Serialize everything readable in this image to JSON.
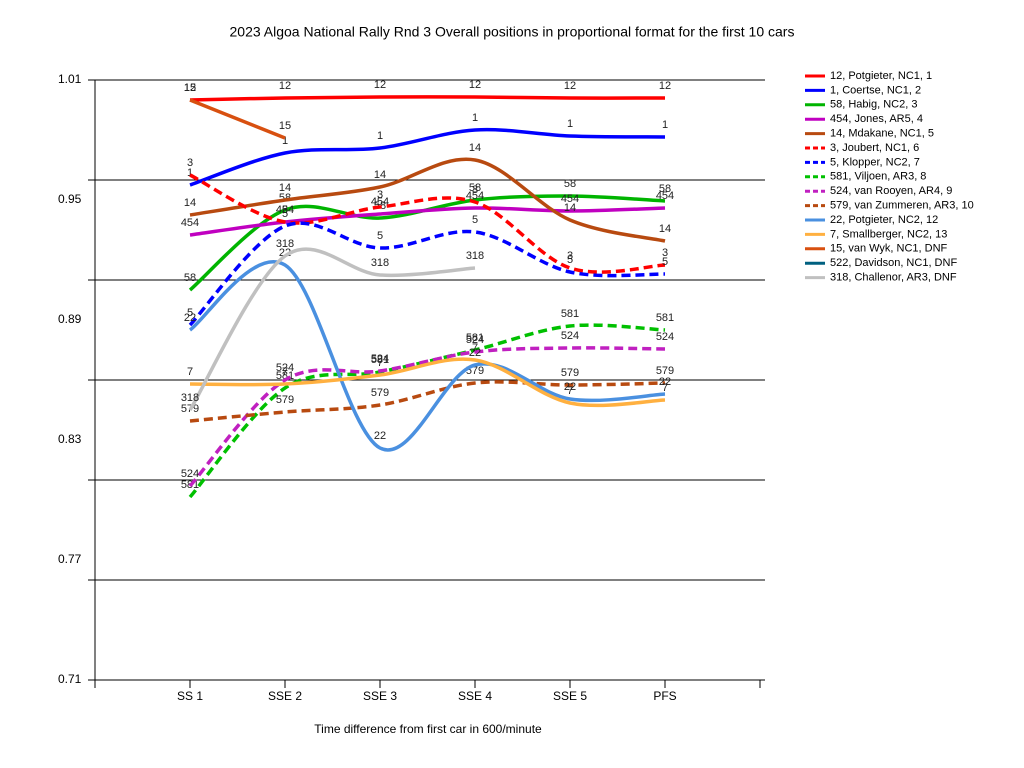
{
  "chart_data": {
    "type": "line",
    "smooth": true,
    "title": "2023 Algoa National Rally Rnd 3  Overall positions in proportional format for the first 10 cars",
    "x_label": "Time difference from first car in 600/minute",
    "categories": [
      "SS 1",
      "SSE 2",
      "SSE 3",
      "SSE 4",
      "SSE 5",
      "PFS"
    ],
    "ylim": [
      0.71,
      1.01
    ],
    "yticks": [
      1.01,
      0.95,
      0.89,
      0.83,
      0.77,
      0.71
    ],
    "ygrid": [
      1.01,
      0.96,
      0.91,
      0.86,
      0.81,
      0.76,
      0.71
    ],
    "legend": "right",
    "series": [
      {
        "name": "12, Potgieter, NC1, 1",
        "point_label": "12",
        "color": "#ff0000",
        "dashed": false,
        "values": [
          1.0,
          1.001,
          1.0015,
          1.0015,
          1.001,
          1.001
        ]
      },
      {
        "name": "1, Coertse, NC1, 2",
        "point_label": "1",
        "color": "#0000ff",
        "dashed": false,
        "values": [
          0.9575,
          0.9735,
          0.976,
          0.985,
          0.982,
          0.9815
        ]
      },
      {
        "name": "58, Habig, NC2, 3",
        "point_label": "58",
        "color": "#00b400",
        "dashed": false,
        "values": [
          0.905,
          0.945,
          0.941,
          0.95,
          0.952,
          0.9495
        ]
      },
      {
        "name": "454, Jones, AR5, 4",
        "point_label": "454",
        "color": "#c000c0",
        "dashed": false,
        "values": [
          0.9325,
          0.939,
          0.943,
          0.946,
          0.9445,
          0.946
        ]
      },
      {
        "name": "14, Mdakane, NC1, 5",
        "point_label": "14",
        "color": "#b84a10",
        "dashed": false,
        "values": [
          0.9425,
          0.95,
          0.9565,
          0.97,
          0.94,
          0.9295
        ]
      },
      {
        "name": "3, Joubert, NC1, 6",
        "point_label": "3",
        "color": "#ff0000",
        "dashed": true,
        "values": [
          0.9625,
          0.939,
          0.9465,
          0.949,
          0.916,
          0.9175
        ]
      },
      {
        "name": "5, Klopper, NC2, 7",
        "point_label": "5",
        "color": "#0000ff",
        "dashed": true,
        "values": [
          0.8875,
          0.937,
          0.926,
          0.934,
          0.914,
          0.913
        ]
      },
      {
        "name": "581, Viljoen, AR3, 8",
        "point_label": "581",
        "color": "#00c000",
        "dashed": true,
        "values": [
          0.8015,
          0.856,
          0.864,
          0.875,
          0.887,
          0.885
        ]
      },
      {
        "name": "524, van Rooyen, AR4, 9",
        "point_label": "524",
        "color": "#c020c0",
        "dashed": true,
        "values": [
          0.807,
          0.86,
          0.8645,
          0.874,
          0.876,
          0.8755
        ]
      },
      {
        "name": "579, van Zummeren, AR3, 10",
        "point_label": "579",
        "color": "#b84a10",
        "dashed": true,
        "values": [
          0.8395,
          0.844,
          0.8475,
          0.8585,
          0.8575,
          0.8585
        ]
      },
      {
        "name": "22, Potgieter, NC2, 12",
        "point_label": "22",
        "color": "#4a90e0",
        "dashed": false,
        "values": [
          0.885,
          0.9175,
          0.826,
          0.8675,
          0.8505,
          0.853
        ]
      },
      {
        "name": "7, Smallberger, NC2, 13",
        "point_label": "7",
        "color": "#ffb040",
        "dashed": false,
        "values": [
          0.858,
          0.858,
          0.8625,
          0.87,
          0.8485,
          0.85
        ]
      },
      {
        "name": "15, van Wyk, NC1,  DNF",
        "point_label": "15",
        "color": "#d85010",
        "dashed": false,
        "values": [
          1.0,
          0.981,
          null,
          null,
          null,
          null
        ]
      },
      {
        "name": "522, Davidson, NC1,  DNF",
        "point_label": "522",
        "color": "#006080",
        "dashed": false,
        "values": [
          null,
          null,
          null,
          null,
          null,
          null
        ]
      },
      {
        "name": "318, Challenor, AR3,  DNF",
        "point_label": "318",
        "color": "#c0c0c0",
        "dashed": false,
        "values": [
          0.845,
          0.922,
          0.9125,
          0.916,
          null,
          null
        ]
      }
    ]
  }
}
